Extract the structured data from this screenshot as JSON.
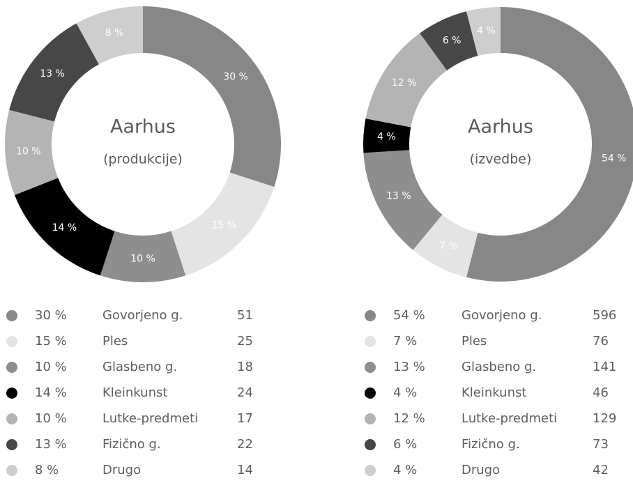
{
  "chart_data": [
    {
      "type": "pie",
      "title": "Aarhus",
      "subtitle": "(produkcije)",
      "categories": [
        "Govorjeno g.",
        "Ples",
        "Glasbeno g.",
        "Kleinkunst",
        "Lutke-predmeti",
        "Fizično g.",
        "Drugo"
      ],
      "values": [
        30,
        15,
        10,
        14,
        10,
        13,
        8
      ],
      "value_labels": [
        "30 %",
        "15 %",
        "10 %",
        "14 %",
        "10 %",
        "13 %",
        "8 %"
      ],
      "counts": [
        51,
        25,
        18,
        24,
        17,
        22,
        14
      ],
      "colors": [
        "#878787",
        "#e4e4e4",
        "#8e8e8e",
        "#000000",
        "#b4b4b4",
        "#474747",
        "#cecece"
      ]
    },
    {
      "type": "pie",
      "title": "Aarhus",
      "subtitle": "(izvedbe)",
      "categories": [
        "Govorjeno g.",
        "Ples",
        "Glasbeno g.",
        "Kleinkunst",
        "Lutke-predmeti",
        "Fizično g.",
        "Drugo"
      ],
      "values": [
        54,
        7,
        13,
        4,
        12,
        6,
        4
      ],
      "value_labels": [
        "54 %",
        "7 %",
        "13 %",
        "4 %",
        "12 %",
        "6 %",
        "4 %"
      ],
      "counts": [
        596,
        76,
        141,
        46,
        129,
        73,
        42
      ],
      "colors": [
        "#878787",
        "#e4e4e4",
        "#8e8e8e",
        "#000000",
        "#b4b4b4",
        "#474747",
        "#cecece"
      ]
    }
  ]
}
